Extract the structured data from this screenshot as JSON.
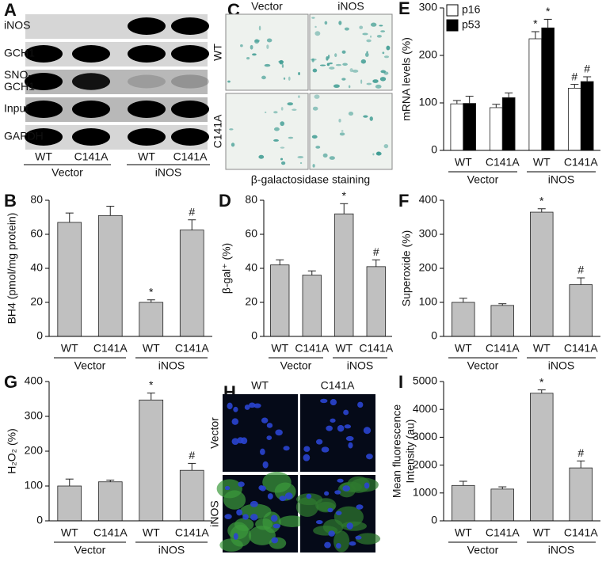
{
  "blot": {
    "panel": "A",
    "rows": [
      [
        "iNOS"
      ],
      [
        "GCH1"
      ],
      [
        "SNO-",
        "GCH1"
      ],
      [
        "Input"
      ],
      [
        "GAPDH"
      ]
    ],
    "lanes": [
      "WT",
      "C141A",
      "WT",
      "C141A"
    ],
    "groups": [
      "Vector",
      "iNOS"
    ]
  },
  "staining": {
    "panel": "C",
    "columns": [
      "Vector",
      "iNOS"
    ],
    "rows": [
      "WT",
      "C141A"
    ],
    "caption": "β-galactosidase staining"
  },
  "fluorescence": {
    "panel": "H",
    "columns": [
      "WT",
      "C141A"
    ],
    "rows": [
      "Vector",
      "iNOS"
    ]
  },
  "chart_data": [
    {
      "panel": "E",
      "type": "bar",
      "ylabel": "mRNA levels (%)",
      "categories": [
        "WT",
        "C141A",
        "WT",
        "C141A"
      ],
      "groups": [
        "Vector",
        "iNOS"
      ],
      "series": [
        {
          "name": "p16",
          "color": "#ffffff",
          "values": [
            98,
            90,
            235,
            131
          ],
          "errors": [
            7,
            7,
            15,
            8
          ],
          "annotations": [
            null,
            null,
            "*",
            "#"
          ]
        },
        {
          "name": "p53",
          "color": "#000000",
          "values": [
            99,
            111,
            258,
            145
          ],
          "errors": [
            15,
            10,
            18,
            10
          ],
          "annotations": [
            null,
            null,
            "*",
            "#"
          ]
        }
      ],
      "ylim": [
        0,
        300
      ],
      "yticks": [
        0,
        100,
        200,
        300
      ],
      "legend": "upper-left"
    },
    {
      "panel": "B",
      "type": "bar",
      "ylabel": "BH4 (pmol/mg protein)",
      "categories": [
        "WT",
        "C141A",
        "WT",
        "C141A"
      ],
      "groups": [
        "Vector",
        "iNOS"
      ],
      "color": "#c0c0c0",
      "values": [
        67,
        71,
        20,
        62.5
      ],
      "errors": [
        5.5,
        5.5,
        1.5,
        6
      ],
      "annotations": [
        null,
        null,
        "*",
        "#"
      ],
      "ylim": [
        0,
        80
      ],
      "yticks": [
        0,
        20,
        40,
        60,
        80
      ]
    },
    {
      "panel": "D",
      "type": "bar",
      "ylabel": "β-gal⁺ (%)",
      "categories": [
        "WT",
        "C141A",
        "WT",
        "C141A"
      ],
      "groups": [
        "Vector",
        "iNOS"
      ],
      "color": "#c0c0c0",
      "values": [
        42,
        36,
        72,
        41
      ],
      "errors": [
        3,
        2.5,
        6,
        4
      ],
      "annotations": [
        null,
        null,
        "*",
        "#"
      ],
      "ylim": [
        0,
        80
      ],
      "yticks": [
        0,
        20,
        40,
        60,
        80
      ]
    },
    {
      "panel": "F",
      "type": "bar",
      "ylabel": "Superoxide (%)",
      "categories": [
        "WT",
        "C141A",
        "WT",
        "C141A"
      ],
      "groups": [
        "Vector",
        "iNOS"
      ],
      "color": "#c0c0c0",
      "values": [
        100,
        91,
        365,
        152
      ],
      "errors": [
        12,
        5,
        10,
        20
      ],
      "annotations": [
        null,
        null,
        "*",
        "#"
      ],
      "ylim": [
        0,
        400
      ],
      "yticks": [
        0,
        100,
        200,
        300,
        400
      ]
    },
    {
      "panel": "G",
      "type": "bar",
      "ylabel": "H₂O₂ (%)",
      "categories": [
        "WT",
        "C141A",
        "WT",
        "C141A"
      ],
      "groups": [
        "Vector",
        "iNOS"
      ],
      "color": "#c0c0c0",
      "values": [
        100,
        112,
        347,
        145
      ],
      "errors": [
        20,
        5,
        20,
        20
      ],
      "annotations": [
        null,
        null,
        "*",
        "#"
      ],
      "ylim": [
        0,
        400
      ],
      "yticks": [
        0,
        100,
        200,
        300,
        400
      ]
    },
    {
      "panel": "I",
      "type": "bar",
      "ylabel": [
        "Mean fluorescence",
        "Intensity (au)"
      ],
      "categories": [
        "WT",
        "C141A",
        "WT",
        "C141A"
      ],
      "groups": [
        "Vector",
        "iNOS"
      ],
      "color": "#c0c0c0",
      "values": [
        1270,
        1140,
        4580,
        1900
      ],
      "errors": [
        150,
        80,
        120,
        250
      ],
      "annotations": [
        null,
        null,
        "*",
        "#"
      ],
      "ylim": [
        0,
        5000
      ],
      "yticks": [
        0,
        1000,
        2000,
        3000,
        4000,
        5000
      ]
    }
  ]
}
